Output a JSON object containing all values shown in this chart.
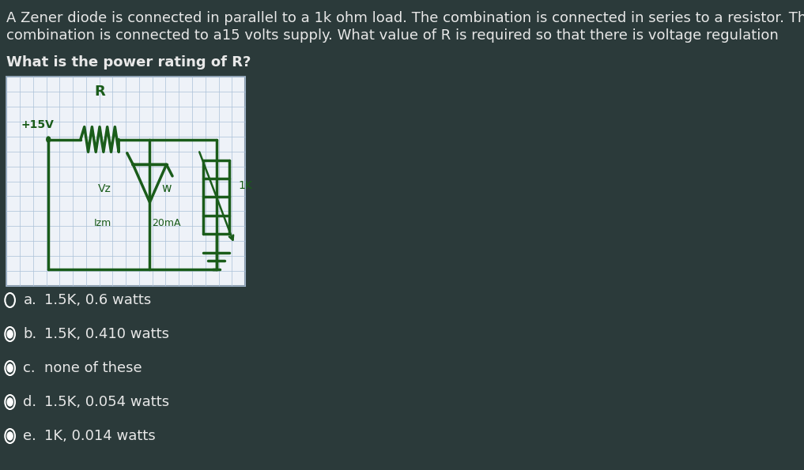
{
  "background_color": "#2b3a3a",
  "text_color": "#e8e8e8",
  "question_text_line1": "A Zener diode is connected in parallel to a 1k ohm load. The combination is connected in series to a resistor. The whole",
  "question_text_line2": "combination is connected to a15 volts supply. What value of R is required so that there is voltage regulation",
  "question_text_line3": "What is the power rating of R?",
  "circuit_bg": "#eef2f8",
  "circuit_grid_color": "#aac0d8",
  "circuit_drawing_color": "#1a5c1a",
  "circuit_border_color": "#8899aa",
  "choices": [
    {
      "label": "a.",
      "text": "1.5K, 0.6 watts",
      "filled": false
    },
    {
      "label": "b.",
      "text": "1.5K, 0.410 watts",
      "filled": true
    },
    {
      "label": "c.",
      "text": "none of these",
      "filled": true
    },
    {
      "label": "d.",
      "text": "1.5K, 0.054 watts",
      "filled": true
    },
    {
      "label": "e.",
      "text": "1K, 0.014 watts",
      "filled": true
    }
  ],
  "font_size_question": 13,
  "font_size_choices": 13
}
